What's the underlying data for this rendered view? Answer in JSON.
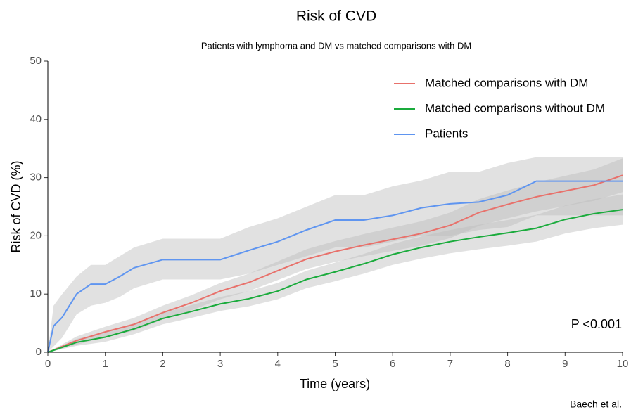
{
  "chart_data": {
    "type": "line",
    "title": "Risk of CVD",
    "subtitle": "Patients with lymphoma and DM vs matched comparisons with DM",
    "x_label": "Time (years)",
    "y_label": "Risk of CVD (%)",
    "annotation": "P <0.001",
    "caption": "Baech et al.",
    "xlim": [
      0,
      10
    ],
    "xticks": [
      0,
      1,
      2,
      3,
      4,
      5,
      6,
      7,
      8,
      9,
      10
    ],
    "ylim": [
      0,
      50
    ],
    "yticks": [
      0,
      10,
      20,
      30,
      40,
      50
    ],
    "grid": false,
    "legend": "top-right",
    "band_color": "#bdbdbd",
    "series": [
      {
        "name": "Matched comparisons with DM",
        "color": "#e8716b",
        "x": [
          0,
          0.5,
          1,
          1.5,
          2,
          2.5,
          3,
          3.5,
          4,
          4.5,
          5,
          5.5,
          6,
          6.5,
          7,
          7.5,
          8,
          8.5,
          9,
          9.5,
          10
        ],
        "values": [
          0,
          2,
          3.5,
          4.8,
          6.8,
          8.5,
          10.5,
          12,
          14,
          16,
          17.3,
          18.4,
          19.4,
          20.4,
          21.8,
          24,
          25.4,
          26.7,
          27.7,
          28.7,
          30.4
        ],
        "lower": [
          0,
          1.3,
          2.6,
          3.7,
          5.6,
          7.2,
          9.1,
          10.5,
          12.4,
          14.3,
          15.5,
          16.5,
          17.4,
          18.3,
          19.6,
          21.7,
          23,
          24.2,
          25.1,
          26,
          27.5
        ],
        "upper": [
          0,
          2.7,
          4.4,
          5.9,
          8,
          9.8,
          11.9,
          13.5,
          15.6,
          17.7,
          19.1,
          20.3,
          21.4,
          22.5,
          24,
          26.3,
          27.8,
          29.2,
          30.3,
          31.4,
          33.3
        ]
      },
      {
        "name": "Matched comparisons without DM",
        "color": "#1aab3c",
        "x": [
          0,
          0.5,
          1,
          1.5,
          2,
          2.5,
          3,
          3.5,
          4,
          4.5,
          5,
          5.5,
          6,
          6.5,
          7,
          7.5,
          8,
          8.5,
          9,
          9.5,
          10
        ],
        "values": [
          0,
          1.7,
          2.6,
          4,
          5.8,
          7,
          8.3,
          9.2,
          10.5,
          12.5,
          13.8,
          15.2,
          16.8,
          18,
          19,
          19.8,
          20.5,
          21.3,
          22.8,
          23.8,
          24.5
        ],
        "lower": [
          0,
          1.1,
          1.8,
          3.1,
          4.8,
          5.9,
          7.1,
          7.9,
          9.1,
          11,
          12.2,
          13.5,
          15,
          16.1,
          17,
          17.7,
          18.3,
          19,
          20.4,
          21.3,
          21.9
        ],
        "upper": [
          0,
          2.3,
          3.4,
          4.9,
          6.8,
          8.1,
          9.5,
          10.5,
          11.9,
          14,
          15.4,
          16.9,
          18.6,
          19.9,
          21,
          21.9,
          22.7,
          23.6,
          25.2,
          26.3,
          27.1
        ]
      },
      {
        "name": "Patients",
        "color": "#5f95f0",
        "x": [
          0,
          0.1,
          0.25,
          0.5,
          0.75,
          1,
          1.25,
          1.5,
          2,
          2.5,
          3,
          3.5,
          4,
          4.5,
          5,
          5.5,
          6,
          6.5,
          7,
          7.5,
          8,
          8.5,
          9,
          10
        ],
        "values": [
          0,
          4.5,
          6,
          10,
          11.7,
          11.7,
          13,
          14.5,
          15.9,
          15.9,
          15.9,
          17.5,
          19,
          21,
          22.7,
          22.7,
          23.5,
          24.8,
          25.5,
          25.8,
          27,
          29.4,
          29.4,
          29.4
        ],
        "lower": [
          0,
          1,
          2.5,
          6.5,
          8,
          8.5,
          9.5,
          11,
          12.5,
          12.5,
          12.5,
          13.5,
          15,
          16.5,
          18,
          18,
          19,
          20,
          20,
          21,
          21.5,
          23.5,
          23.5,
          23.5
        ],
        "upper": [
          0,
          8,
          10,
          13,
          15,
          15,
          16.5,
          18,
          19.5,
          19.5,
          19.5,
          21.5,
          23,
          25,
          27,
          27,
          28.5,
          29.5,
          31,
          31,
          32.5,
          33.5,
          33.5,
          33.5
        ]
      }
    ]
  }
}
